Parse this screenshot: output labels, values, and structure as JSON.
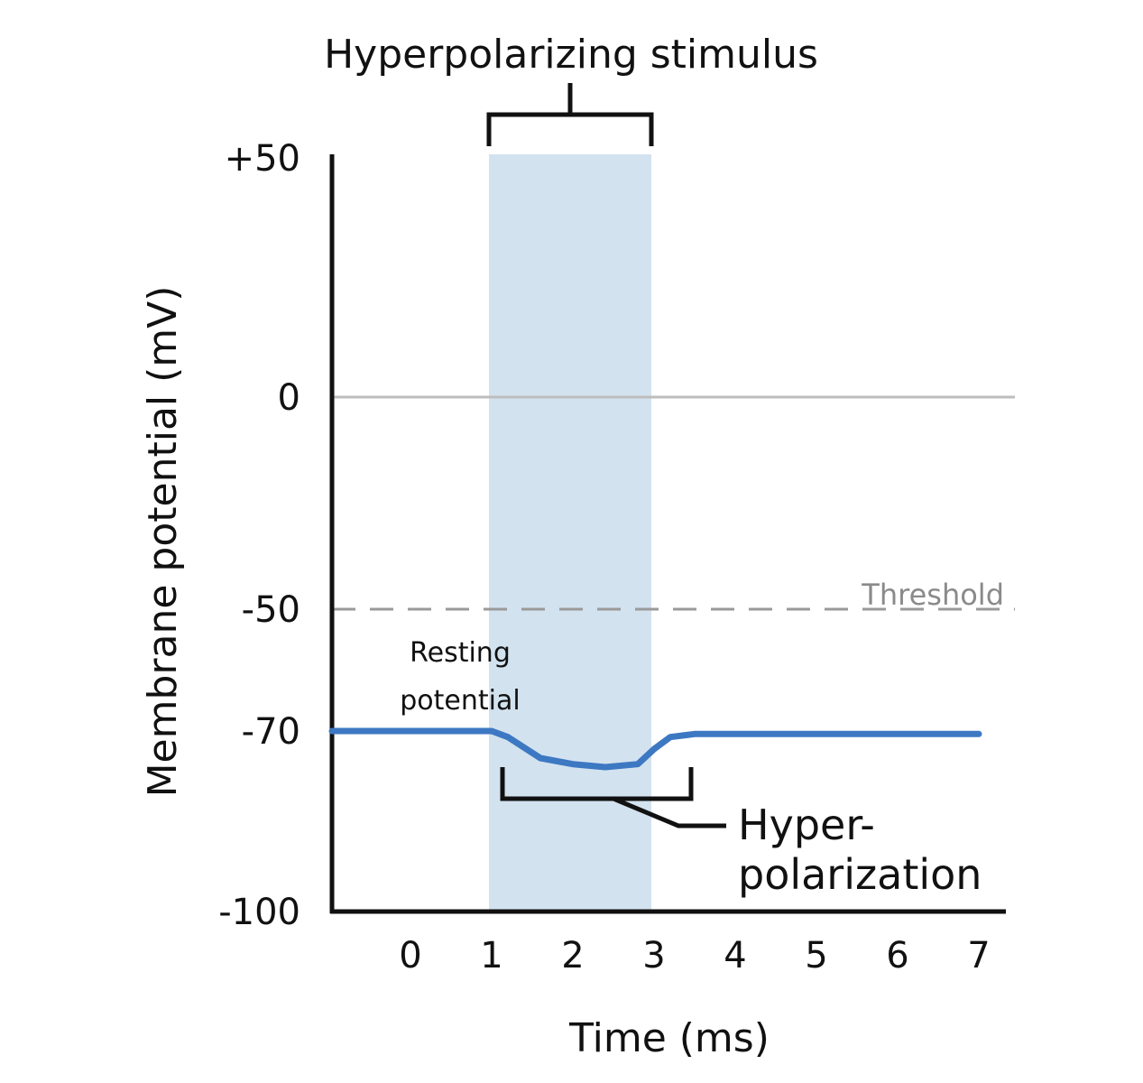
{
  "chart_data": {
    "type": "line",
    "title": "Hyperpolarizing stimulus",
    "xlabel": "Time (ms)",
    "ylabel": "Membrane potential (mV)",
    "xlim": [
      -1,
      7.3
    ],
    "ylim": [
      -100,
      50
    ],
    "x_ticks": [
      0,
      1,
      2,
      3,
      4,
      5,
      6,
      7
    ],
    "x_tick_labels": [
      "0",
      "1",
      "2",
      "3",
      "4",
      "5",
      "6",
      "7"
    ],
    "y_ticks": [
      50,
      0,
      -50,
      -70,
      -100
    ],
    "y_tick_labels": [
      "+50",
      "0",
      "-50",
      "-70",
      "-100"
    ],
    "stimulus_window": [
      1,
      3
    ],
    "threshold": {
      "value": -50,
      "label": "Threshold"
    },
    "zero_line": 0,
    "series": [
      {
        "color": "#3d78c2",
        "x": [
          -1,
          0,
          1,
          1.2,
          1.6,
          2.0,
          2.4,
          2.8,
          3.0,
          3.2,
          3.5,
          7
        ],
        "y": [
          -70,
          -70,
          -70,
          -71,
          -74.5,
          -75.5,
          -76,
          -75.5,
          -73,
          -71,
          -70.5,
          -70.5
        ]
      }
    ],
    "annotations": {
      "resting_line1": "Resting",
      "resting_line2": "potential",
      "hyper_line1": "Hyper-",
      "hyper_line2": "polarization"
    },
    "colors": {
      "stimulus_fill": "#d3e2ef",
      "zero_line": "#bdbdbd",
      "threshold_line": "#9a9a9a"
    }
  }
}
